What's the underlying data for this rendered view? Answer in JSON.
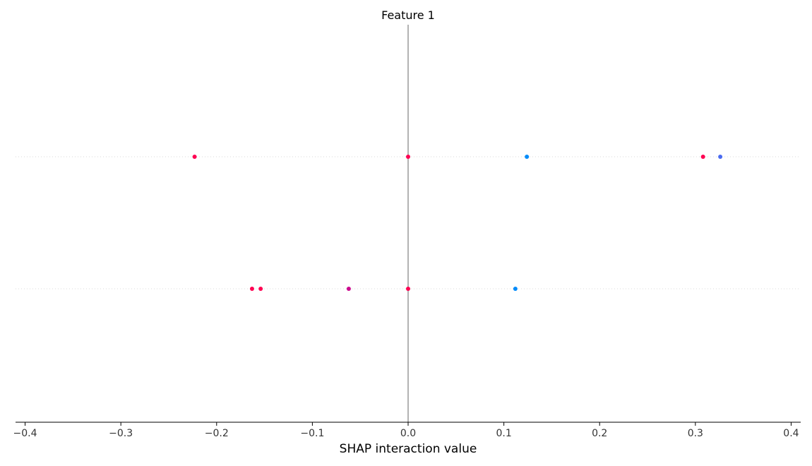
{
  "chart_data": {
    "type": "scatter",
    "title": "Feature 1",
    "xlabel": "SHAP interaction value",
    "ylabel": "",
    "xlim": [
      -0.41,
      0.41
    ],
    "xticks": [
      -0.4,
      -0.3,
      -0.2,
      -0.1,
      0.0,
      0.1,
      0.2,
      0.3,
      0.4
    ],
    "xtick_labels": [
      "−0.4",
      "−0.3",
      "−0.2",
      "−0.1",
      "0.0",
      "0.1",
      "0.2",
      "0.3",
      "0.4"
    ],
    "grid": false,
    "zero_line": true,
    "rows": [
      {
        "points": [
          {
            "x": -0.223,
            "color": "#ff0052"
          },
          {
            "x": 0.0,
            "color": "#ff0052"
          },
          {
            "x": 0.124,
            "color": "#008bfa"
          },
          {
            "x": 0.308,
            "color": "#ff0052"
          },
          {
            "x": 0.326,
            "color": "#4a6bf0"
          }
        ]
      },
      {
        "points": [
          {
            "x": -0.163,
            "color": "#ff0052"
          },
          {
            "x": -0.154,
            "color": "#ff0052"
          },
          {
            "x": -0.062,
            "color": "#cc0a8e"
          },
          {
            "x": 0.0,
            "color": "#ff0052"
          },
          {
            "x": 0.112,
            "color": "#008bfa"
          }
        ]
      }
    ]
  }
}
